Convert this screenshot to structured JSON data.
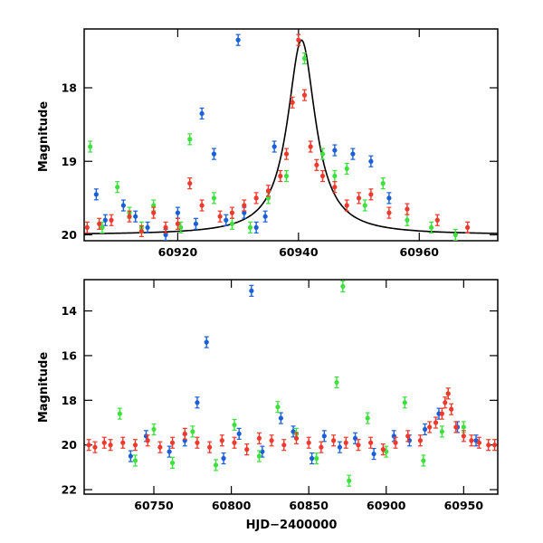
{
  "chart_data": [
    {
      "type": "scatter",
      "title": "",
      "xlabel": "",
      "ylabel": "Magnitude",
      "xlim": [
        60904.5,
        60973
      ],
      "ylim": [
        20.08,
        17.2
      ],
      "y_inverted": true,
      "grid": false,
      "x_ticks": [
        60920,
        60940,
        60960
      ],
      "y_ticks": [
        18,
        19,
        20
      ],
      "series": [
        {
          "color": "#1a5fd8",
          "x": [
            60906.5,
            60908,
            60911,
            60913,
            60915,
            60918,
            60920,
            60923,
            60924,
            60926,
            60928,
            60930,
            60931,
            60933,
            60934.5,
            60936,
            60946,
            60949,
            60952,
            60955
          ],
          "y": [
            19.45,
            19.8,
            19.6,
            19.75,
            19.9,
            20.0,
            19.7,
            19.85,
            18.35,
            18.9,
            19.8,
            17.35,
            19.7,
            19.9,
            19.75,
            18.8,
            18.85,
            18.9,
            19.0,
            19.5
          ]
        },
        {
          "color": "#3de03d",
          "x": [
            60905.5,
            60907.5,
            60910,
            60912,
            60914,
            60916,
            60920.5,
            60922,
            60926,
            60929,
            60932,
            60935,
            60938,
            60941,
            60944,
            60946,
            60948,
            60951,
            60954,
            60958,
            60962,
            60966
          ],
          "y": [
            18.8,
            19.9,
            19.35,
            19.7,
            19.9,
            19.6,
            19.9,
            18.7,
            19.5,
            19.85,
            19.9,
            19.5,
            19.2,
            17.6,
            18.9,
            19.2,
            19.1,
            19.6,
            19.3,
            19.8,
            19.9,
            20.0
          ]
        },
        {
          "color": "#f0382c",
          "x": [
            60905,
            60907,
            60909,
            60912,
            60914,
            60916,
            60918,
            60920,
            60922,
            60924,
            60927,
            60929,
            60931,
            60933,
            60935,
            60937,
            60938,
            60939,
            60940,
            60941,
            60942,
            60943,
            60944,
            60946,
            60948,
            60950,
            60952,
            60955,
            60958,
            60963,
            60968
          ],
          "y": [
            19.9,
            19.85,
            19.8,
            19.75,
            19.95,
            19.7,
            19.9,
            19.85,
            19.3,
            19.6,
            19.75,
            19.7,
            19.6,
            19.5,
            19.4,
            19.2,
            18.9,
            18.2,
            17.35,
            18.1,
            18.8,
            19.05,
            19.2,
            19.35,
            19.6,
            19.5,
            19.45,
            19.7,
            19.65,
            19.8,
            19.9
          ]
        }
      ],
      "model_curve": {
        "color": "#000000",
        "peak_x": 60940.5,
        "peak_mag": 17.35,
        "baseline_mag": 20.0,
        "width_days": 2.8
      }
    },
    {
      "type": "scatter",
      "title": "",
      "xlabel": "HJD−2400000",
      "ylabel": "Magnitude",
      "xlim": [
        60705,
        60972
      ],
      "ylim": [
        22.2,
        12.6
      ],
      "y_inverted": true,
      "grid": false,
      "x_ticks": [
        60750,
        60800,
        60850,
        60900,
        60950
      ],
      "y_ticks": [
        14,
        16,
        18,
        20,
        22
      ],
      "series": [
        {
          "color": "#1a5fd8",
          "x": [
            60735,
            60745,
            60760,
            60770,
            60778,
            60784,
            60795,
            60805,
            60813,
            60820,
            60832,
            60840,
            60852,
            60860,
            60870,
            60880,
            60892,
            60905,
            60915,
            60925,
            60934,
            60946,
            60958
          ],
          "y": [
            20.5,
            19.6,
            20.3,
            19.8,
            18.1,
            15.4,
            20.6,
            19.5,
            13.1,
            20.3,
            18.8,
            19.4,
            20.6,
            19.6,
            20.1,
            19.7,
            20.4,
            19.6,
            19.8,
            19.3,
            18.6,
            19.2,
            19.8
          ]
        },
        {
          "color": "#3de03d",
          "x": [
            60728,
            60738,
            60750,
            60762,
            60775,
            60790,
            60802,
            60818,
            60830,
            60842,
            60855,
            60868,
            60872,
            60876,
            60888,
            60900,
            60912,
            60924,
            60936,
            60940,
            60950
          ],
          "y": [
            18.6,
            20.7,
            19.3,
            20.8,
            19.4,
            20.9,
            19.1,
            20.5,
            18.3,
            19.5,
            20.6,
            17.2,
            12.9,
            21.6,
            18.8,
            20.3,
            18.1,
            20.7,
            19.4,
            17.7,
            19.2
          ]
        },
        {
          "color": "#f0382c",
          "x": [
            60708,
            60712,
            60718,
            60722,
            60730,
            60738,
            60746,
            60754,
            60762,
            60770,
            60778,
            60786,
            60794,
            60802,
            60810,
            60818,
            60826,
            60834,
            60842,
            60850,
            60858,
            60866,
            60874,
            60882,
            60890,
            60898,
            60906,
            60914,
            60922,
            60928,
            60932,
            60936,
            60938,
            60940,
            60942,
            60945,
            60950,
            60955,
            60960,
            60966,
            60970
          ],
          "y": [
            20.0,
            20.1,
            19.9,
            20.0,
            19.9,
            20.0,
            19.8,
            20.1,
            19.9,
            19.5,
            19.9,
            20.1,
            19.8,
            19.9,
            20.2,
            19.7,
            19.8,
            20.0,
            19.7,
            19.9,
            20.1,
            19.8,
            19.9,
            20.0,
            19.9,
            20.2,
            19.9,
            19.6,
            19.8,
            19.2,
            19.0,
            18.6,
            18.1,
            17.7,
            18.4,
            19.2,
            19.6,
            19.8,
            19.9,
            20.0,
            20.0
          ]
        }
      ]
    }
  ]
}
